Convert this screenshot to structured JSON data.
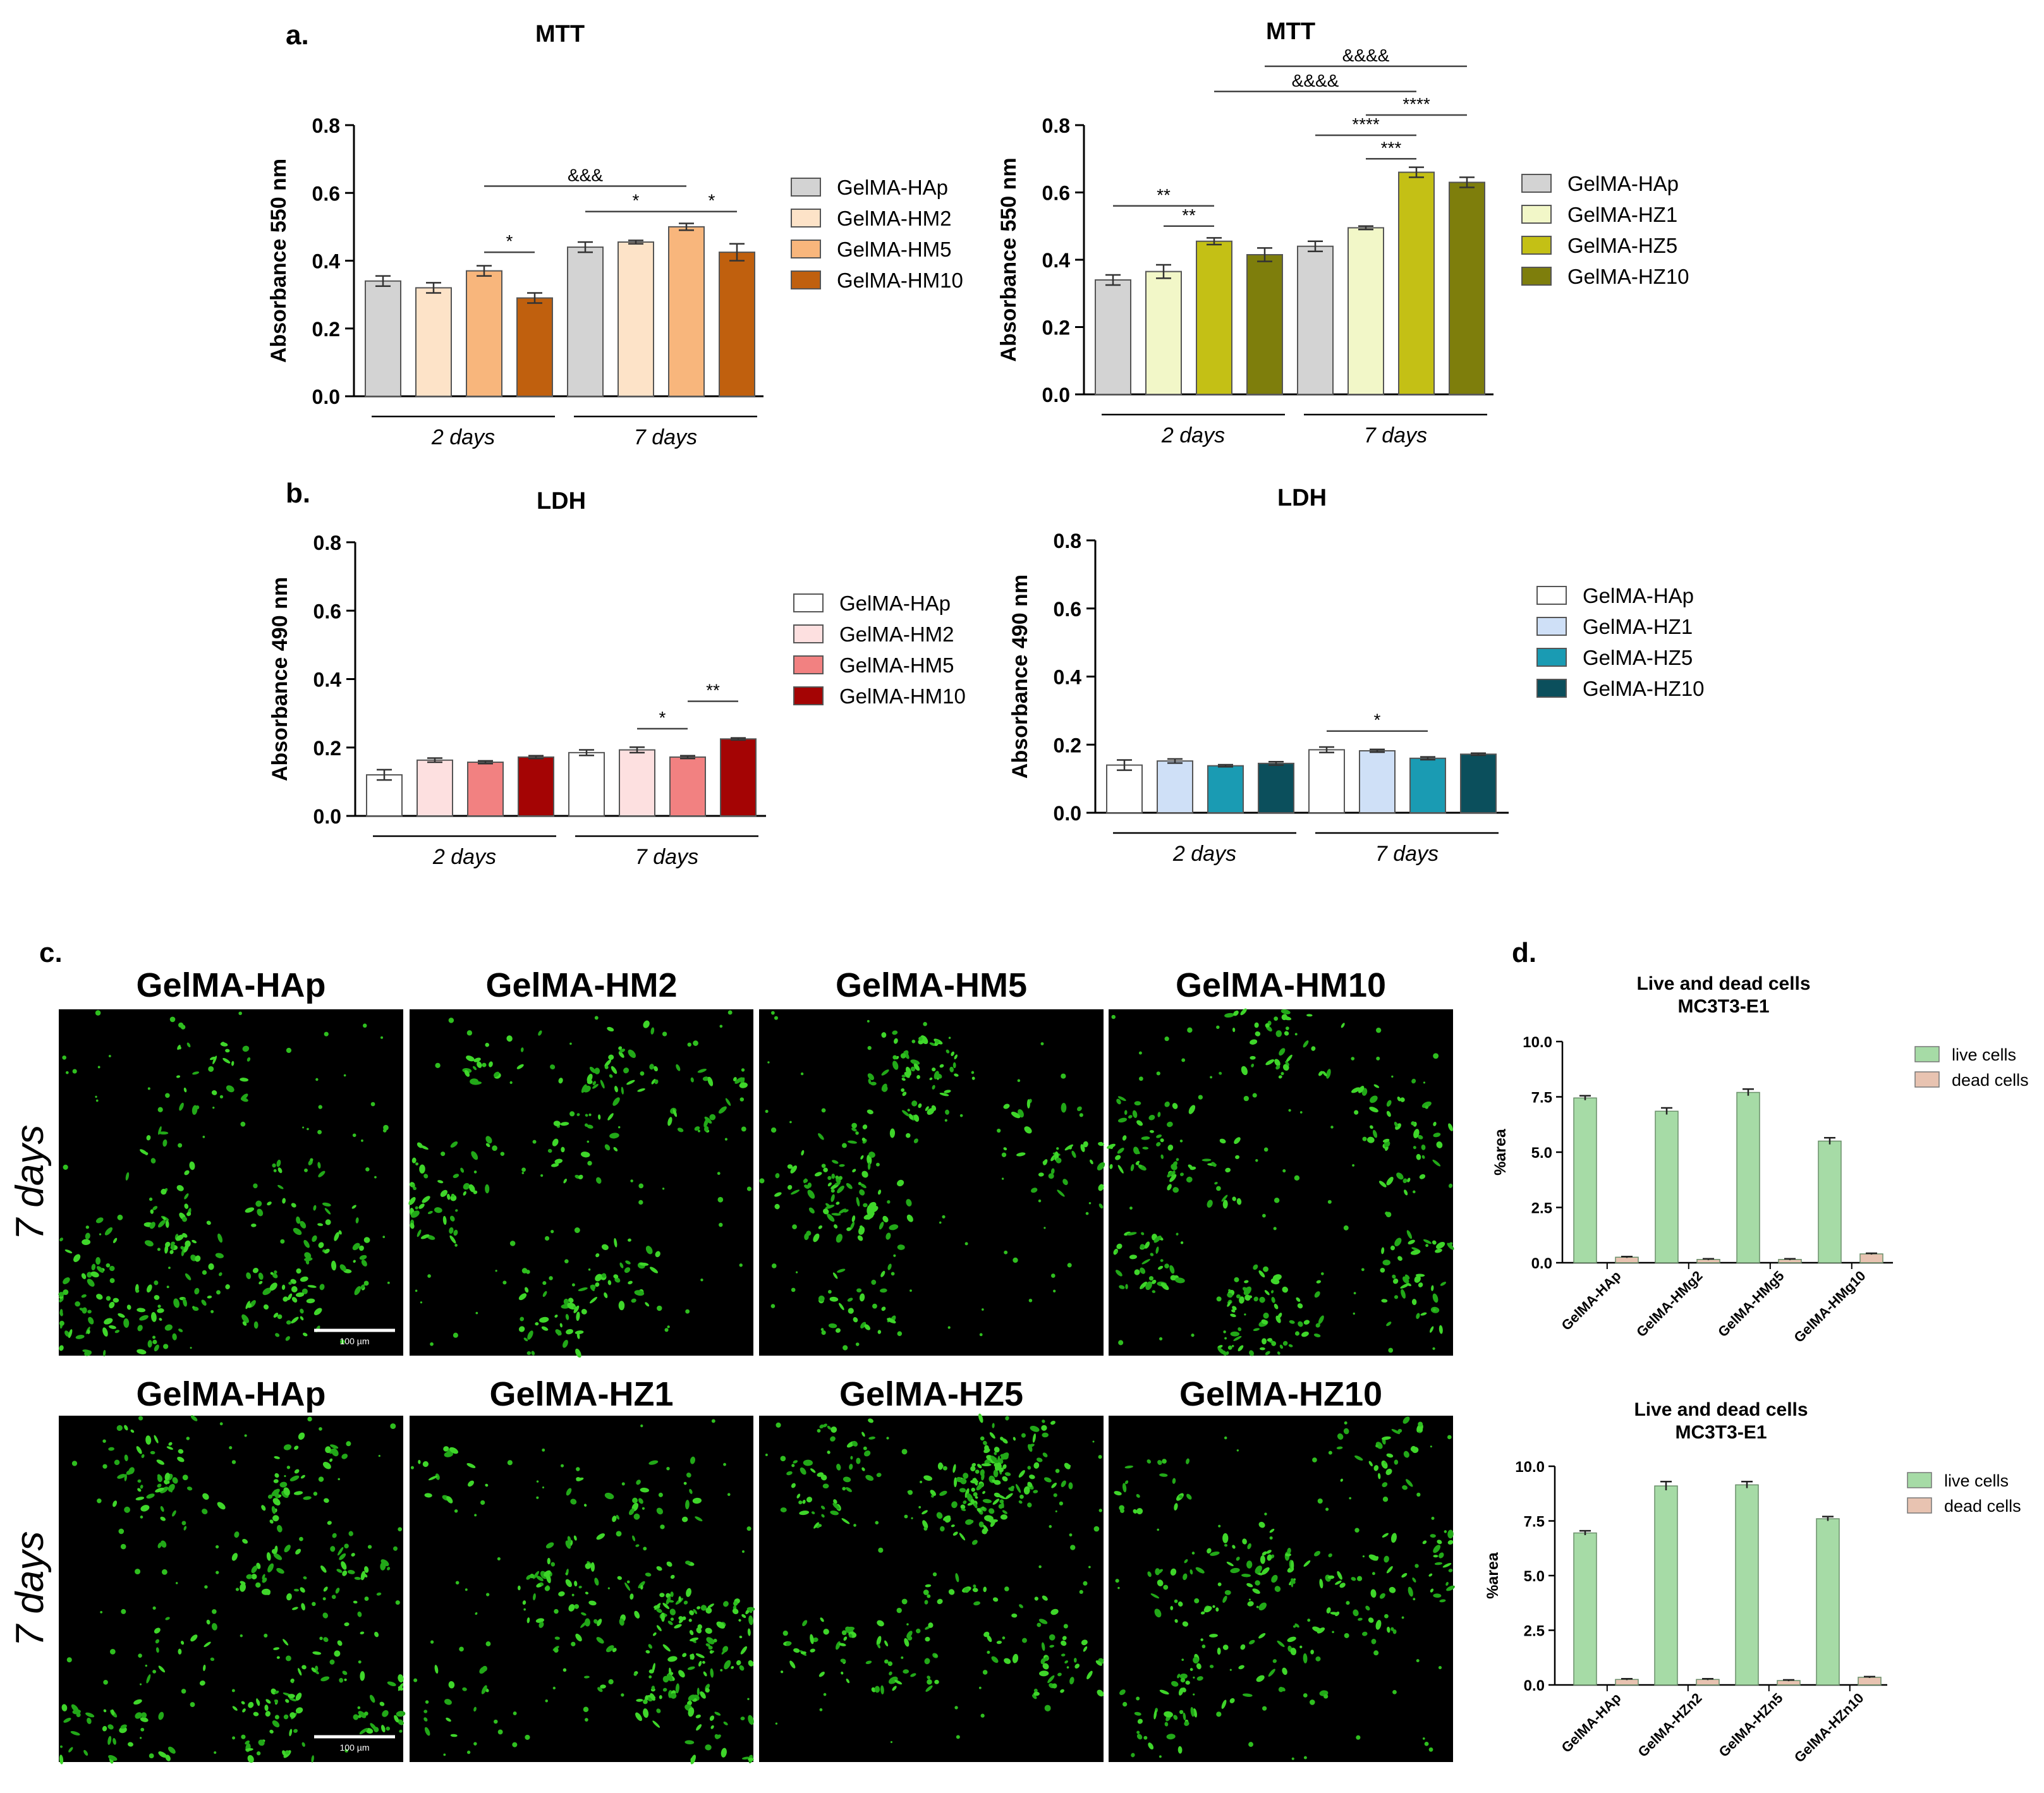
{
  "panel_labels": {
    "a": "a.",
    "b": "b.",
    "c": "c.",
    "d": "d."
  },
  "group_labels": [
    "2 days",
    "7 days"
  ],
  "colors": {
    "hap": "#d3d3d3",
    "hm": [
      "#fde3c8",
      "#f8b67c",
      "#c0600e"
    ],
    "hz": [
      "#f2f7c8",
      "#c4c015",
      "#7e7e0c"
    ],
    "ldh_hap": "#ffffff",
    "ldh_hm": [
      "#fde0e0",
      "#f28181",
      "#a40404"
    ],
    "ldh_hz": [
      "#cfe0f7",
      "#1a9bb3",
      "#0b4f5c"
    ],
    "live": "#a6dba6",
    "dead": "#e8c3b1"
  },
  "chart_data": [
    {
      "type": "bar",
      "id": "mtt-hm",
      "title": "MTT",
      "xlabel": "",
      "ylabel": "Absorbance 550 nm",
      "ylim": [
        0,
        0.8
      ],
      "yticks": [
        "0.0",
        "0.2",
        "0.4",
        "0.6",
        "0.8"
      ],
      "categories": [
        "2 days",
        "7 days"
      ],
      "series": [
        {
          "name": "GelMA-HAp",
          "values": [
            0.34,
            0.44
          ],
          "errors": [
            0.015,
            0.015
          ]
        },
        {
          "name": "GelMA-HM2",
          "values": [
            0.32,
            0.455
          ],
          "errors": [
            0.015,
            0.005
          ]
        },
        {
          "name": "GelMA-HM5",
          "values": [
            0.37,
            0.5
          ],
          "errors": [
            0.015,
            0.01
          ]
        },
        {
          "name": "GelMA-HM10",
          "values": [
            0.29,
            0.425
          ],
          "errors": [
            0.015,
            0.025
          ]
        }
      ],
      "annotations": [
        {
          "text": "*",
          "from": [
            0,
            2
          ],
          "to": [
            0,
            3
          ],
          "level": 0.425
        },
        {
          "text": "&&&",
          "from": [
            0,
            2
          ],
          "to": [
            1,
            2
          ],
          "level": 0.62
        },
        {
          "text": "*",
          "from": [
            1,
            0
          ],
          "to": [
            1,
            2
          ],
          "level": 0.545
        },
        {
          "text": "*",
          "from": [
            1,
            2
          ],
          "to": [
            1,
            3
          ],
          "level": 0.545
        }
      ]
    },
    {
      "type": "bar",
      "id": "mtt-hz",
      "title": "MTT",
      "xlabel": "",
      "ylabel": "Absorbance 550 nm",
      "ylim": [
        0,
        0.8
      ],
      "yticks": [
        "0.0",
        "0.2",
        "0.4",
        "0.6",
        "0.8"
      ],
      "categories": [
        "2 days",
        "7 days"
      ],
      "series": [
        {
          "name": "GelMA-HAp",
          "values": [
            0.34,
            0.44
          ],
          "errors": [
            0.015,
            0.015
          ]
        },
        {
          "name": "GelMA-HZ1",
          "values": [
            0.365,
            0.495
          ],
          "errors": [
            0.02,
            0.005
          ]
        },
        {
          "name": "GelMA-HZ5",
          "values": [
            0.455,
            0.66
          ],
          "errors": [
            0.01,
            0.015
          ]
        },
        {
          "name": "GelMA-HZ10",
          "values": [
            0.415,
            0.63
          ],
          "errors": [
            0.02,
            0.015
          ]
        }
      ],
      "annotations": [
        {
          "text": "**",
          "from": [
            0,
            0
          ],
          "to": [
            0,
            2
          ],
          "level": 0.56
        },
        {
          "text": "**",
          "from": [
            0,
            1
          ],
          "to": [
            0,
            2
          ],
          "level": 0.5
        },
        {
          "text": "****",
          "from": [
            1,
            0
          ],
          "to": [
            1,
            2
          ],
          "level": 0.77
        },
        {
          "text": "***",
          "from": [
            1,
            1
          ],
          "to": [
            1,
            2
          ],
          "level": 0.7
        },
        {
          "text": "****",
          "from": [
            1,
            1
          ],
          "to": [
            1,
            3
          ],
          "level": 0.83
        },
        {
          "text": "&&&&",
          "from": [
            0,
            2
          ],
          "to": [
            1,
            2
          ],
          "level": 0.9
        },
        {
          "text": "&&&&",
          "from": [
            0,
            3
          ],
          "to": [
            1,
            3
          ],
          "level": 0.975
        }
      ]
    },
    {
      "type": "bar",
      "id": "ldh-hm",
      "title": "LDH",
      "xlabel": "",
      "ylabel": "Absorbance 490 nm",
      "ylim": [
        0,
        0.8
      ],
      "yticks": [
        "0.0",
        "0.2",
        "0.4",
        "0.6",
        "0.8"
      ],
      "categories": [
        "2 days",
        "7 days"
      ],
      "series": [
        {
          "name": "GelMA-HAp",
          "values": [
            0.12,
            0.185
          ],
          "errors": [
            0.015,
            0.008
          ]
        },
        {
          "name": "GelMA-HM2",
          "values": [
            0.163,
            0.193
          ],
          "errors": [
            0.006,
            0.008
          ]
        },
        {
          "name": "GelMA-HM5",
          "values": [
            0.157,
            0.172
          ],
          "errors": [
            0.004,
            0.004
          ]
        },
        {
          "name": "GelMA-HM10",
          "values": [
            0.172,
            0.225
          ],
          "errors": [
            0.004,
            0.003
          ]
        }
      ],
      "annotations": [
        {
          "text": "*",
          "from": [
            1,
            1
          ],
          "to": [
            1,
            2
          ],
          "level": 0.255
        },
        {
          "text": "**",
          "from": [
            1,
            2
          ],
          "to": [
            1,
            3
          ],
          "level": 0.335
        }
      ]
    },
    {
      "type": "bar",
      "id": "ldh-hz",
      "title": "LDH",
      "xlabel": "",
      "ylabel": "Absorbance 490 nm",
      "ylim": [
        0,
        0.8
      ],
      "yticks": [
        "0.0",
        "0.2",
        "0.4",
        "0.6",
        "0.8"
      ],
      "categories": [
        "2 days",
        "7 days"
      ],
      "series": [
        {
          "name": "GelMA-HAp",
          "values": [
            0.14,
            0.185
          ],
          "errors": [
            0.015,
            0.008
          ]
        },
        {
          "name": "GelMA-HZ1",
          "values": [
            0.152,
            0.182
          ],
          "errors": [
            0.006,
            0.004
          ]
        },
        {
          "name": "GelMA-HZ5",
          "values": [
            0.138,
            0.16
          ],
          "errors": [
            0.003,
            0.004
          ]
        },
        {
          "name": "GelMA-HZ10",
          "values": [
            0.145,
            0.172
          ],
          "errors": [
            0.005,
            0.003
          ]
        }
      ],
      "annotations": [
        {
          "text": "*",
          "from": [
            1,
            0
          ],
          "to": [
            1,
            2
          ],
          "level": 0.24
        }
      ]
    },
    {
      "type": "bar",
      "id": "livedead-hm",
      "title": "Live and dead cells",
      "subtitle": "MC3T3-E1",
      "xlabel": "",
      "ylabel": "%area",
      "ylim": [
        0,
        10
      ],
      "yticks": [
        "0.0",
        "2.5",
        "5.0",
        "7.5",
        "10.0"
      ],
      "categories": [
        "GelMA-HAp",
        "GelMA-HMg2",
        "GelMA-HMg5",
        "GelMA-HMg10"
      ],
      "series": [
        {
          "name": "live cells",
          "values": [
            7.45,
            6.85,
            7.7,
            5.5
          ],
          "errors": [
            0.1,
            0.15,
            0.15,
            0.15
          ]
        },
        {
          "name": "dead cells",
          "values": [
            0.25,
            0.15,
            0.15,
            0.4
          ],
          "errors": [
            0.03,
            0.03,
            0.03,
            0.03
          ]
        }
      ]
    },
    {
      "type": "bar",
      "id": "livedead-hz",
      "title": "Live and dead cells",
      "subtitle": "MC3T3-E1",
      "xlabel": "",
      "ylabel": "%area",
      "ylim": [
        0,
        10
      ],
      "yticks": [
        "0.0",
        "2.5",
        "5.0",
        "7.5",
        "10.0"
      ],
      "categories": [
        "GelMA-HAp",
        "GelMA-HZn2",
        "GelMA-HZn5",
        "GelMA-HZn10"
      ],
      "series": [
        {
          "name": "live cells",
          "values": [
            6.95,
            9.1,
            9.15,
            7.6
          ],
          "errors": [
            0.1,
            0.2,
            0.15,
            0.1
          ]
        },
        {
          "name": "dead cells",
          "values": [
            0.25,
            0.25,
            0.2,
            0.35
          ],
          "errors": [
            0.03,
            0.03,
            0.03,
            0.03
          ]
        }
      ]
    }
  ],
  "micrographs": {
    "timepoint_label": "7 days",
    "scale_bar_label": "100 µm",
    "row1_titles": [
      "GelMA-HAp",
      "GelMA-HM2",
      "GelMA-HM5",
      "GelMA-HM10"
    ],
    "row2_titles": [
      "GelMA-HAp",
      "GelMA-HZ1",
      "GelMA-HZ5",
      "GelMA-HZ10"
    ]
  }
}
